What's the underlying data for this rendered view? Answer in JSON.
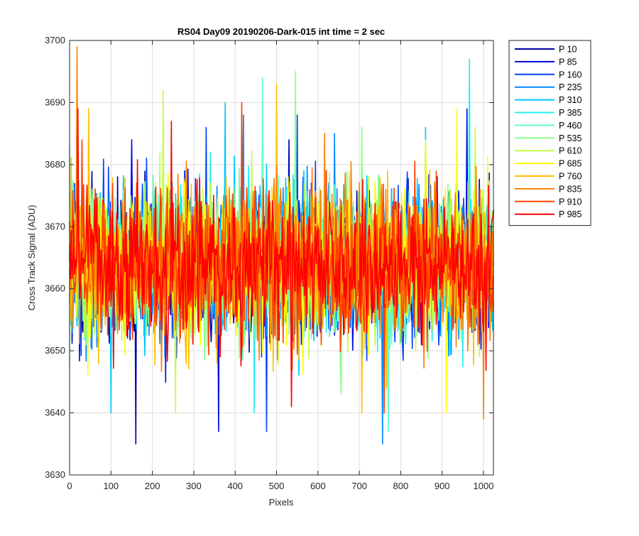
{
  "chart_data": {
    "type": "line",
    "title": "RS04 Day09 20190206-Dark-015 int time = 2 sec",
    "xlabel": "Pixels",
    "ylabel": "Cross Track Signal (ADU)",
    "xlim": [
      0,
      1024
    ],
    "ylim": [
      3630,
      3700
    ],
    "xticks": [
      0,
      100,
      200,
      300,
      400,
      500,
      600,
      700,
      800,
      900,
      1000
    ],
    "yticks": [
      3630,
      3640,
      3650,
      3660,
      3670,
      3680,
      3690,
      3700
    ],
    "grid": true,
    "legend_position": "outside-top-right",
    "approx_mean": 3664,
    "approx_noise_std": 7,
    "series": [
      {
        "name": "P 10",
        "color": "#0000a8",
        "notable_extremes": [
          [
            160,
            3635
          ],
          [
            20,
            3686
          ],
          [
            530,
            3684
          ]
        ]
      },
      {
        "name": "P 85",
        "color": "#0008e0",
        "notable_extremes": [
          [
            360,
            3637
          ],
          [
            960,
            3689
          ],
          [
            150,
            3684
          ]
        ]
      },
      {
        "name": "P 160",
        "color": "#0040ff",
        "notable_extremes": [
          [
            475,
            3637
          ],
          [
            550,
            3688
          ],
          [
            330,
            3686
          ]
        ]
      },
      {
        "name": "P 235",
        "color": "#0088ff",
        "notable_extremes": [
          [
            755,
            3635
          ],
          [
            420,
            3688
          ],
          [
            640,
            3685
          ]
        ]
      },
      {
        "name": "P 310",
        "color": "#00c8ff",
        "notable_extremes": [
          [
            100,
            3640
          ],
          [
            375,
            3690
          ],
          [
            860,
            3686
          ]
        ]
      },
      {
        "name": "P 385",
        "color": "#20f0f0",
        "notable_extremes": [
          [
            445,
            3640
          ],
          [
            965,
            3697
          ],
          [
            340,
            3682
          ]
        ]
      },
      {
        "name": "P 460",
        "color": "#60ffc0",
        "notable_extremes": [
          [
            770,
            3637
          ],
          [
            465,
            3694
          ],
          [
            0,
            3683
          ]
        ]
      },
      {
        "name": "P 535",
        "color": "#88ff88",
        "notable_extremes": [
          [
            655,
            3643
          ],
          [
            545,
            3695
          ],
          [
            705,
            3686
          ]
        ]
      },
      {
        "name": "P 610",
        "color": "#c0ff40",
        "notable_extremes": [
          [
            255,
            3640
          ],
          [
            225,
            3692
          ],
          [
            980,
            3686
          ]
        ]
      },
      {
        "name": "P 685",
        "color": "#ffff00",
        "notable_extremes": [
          [
            910,
            3640
          ],
          [
            935,
            3689
          ],
          [
            860,
            3684
          ]
        ]
      },
      {
        "name": "P 760",
        "color": "#ffbf00",
        "notable_extremes": [
          [
            705,
            3640
          ],
          [
            500,
            3693
          ],
          [
            45,
            3689
          ]
        ]
      },
      {
        "name": "P 835",
        "color": "#ff8000",
        "notable_extremes": [
          [
            1000,
            3639
          ],
          [
            18,
            3699
          ],
          [
            615,
            3685
          ]
        ]
      },
      {
        "name": "P 910",
        "color": "#ff4000",
        "notable_extremes": [
          [
            760,
            3640
          ],
          [
            415,
            3690
          ],
          [
            30,
            3684
          ]
        ]
      },
      {
        "name": "P 985",
        "color": "#ff0000",
        "notable_extremes": [
          [
            535,
            3641
          ],
          [
            20,
            3689
          ],
          [
            245,
            3687
          ]
        ]
      }
    ]
  }
}
